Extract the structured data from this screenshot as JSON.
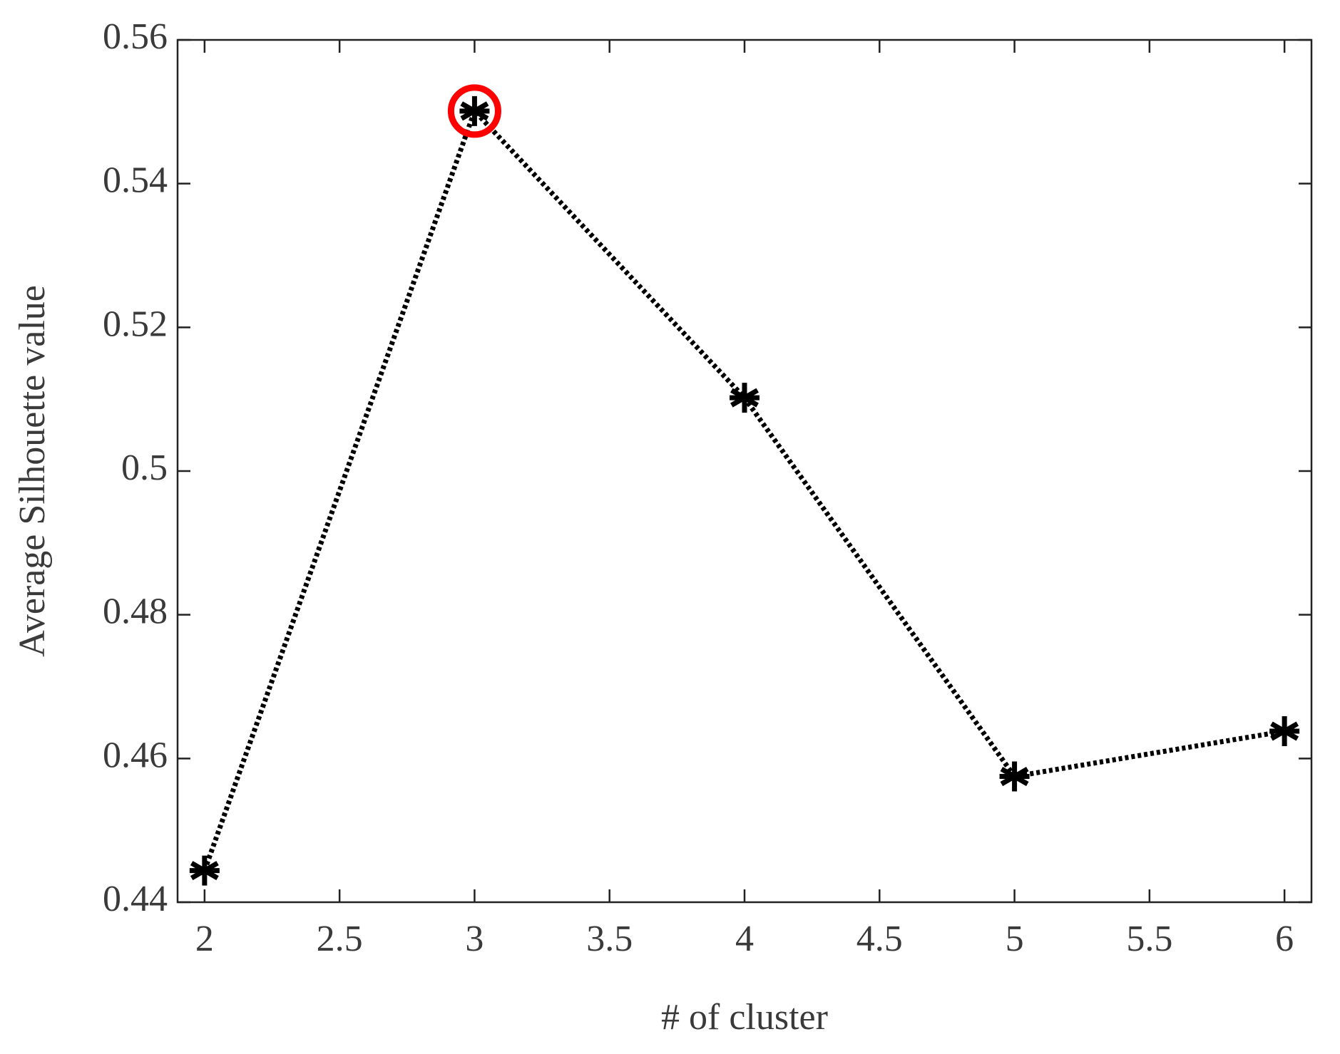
{
  "chart_data": {
    "type": "line",
    "x_label": "# of cluster",
    "y_label": "Average Silhouette value",
    "x": [
      2,
      3,
      4,
      5,
      6
    ],
    "series": [
      {
        "color": "#000000",
        "values": [
          0.4444,
          0.5501,
          0.5102,
          0.4575,
          0.4638
        ]
      }
    ],
    "highlight_index": 1,
    "highlight_color": "#ff0000",
    "xlim": [
      1.9,
      6.1
    ],
    "xticks": [
      2,
      2.5,
      3,
      3.5,
      4,
      4.5,
      5,
      5.5,
      6
    ],
    "ylim": [
      0.44,
      0.56
    ],
    "yticks": [
      0.44,
      0.46,
      0.48,
      0.5,
      0.52,
      0.54,
      0.56
    ],
    "grid": false
  }
}
